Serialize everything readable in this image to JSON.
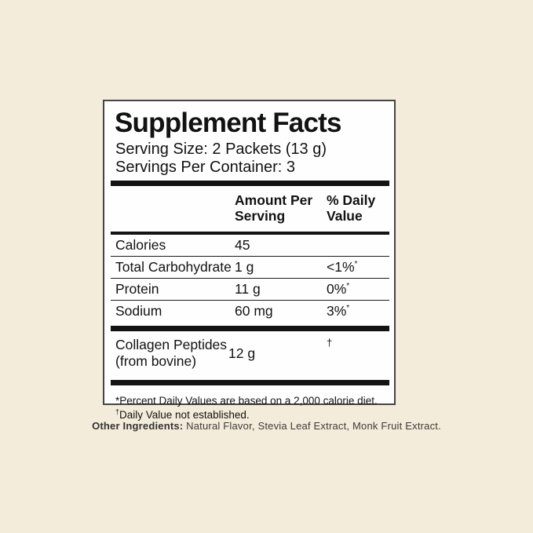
{
  "panel": {
    "title": "Supplement Facts",
    "serving_size": "Serving Size: 2 Packets (13 g)",
    "servings_per_container": "Servings Per Container: 3",
    "columns": {
      "amount": "Amount Per Serving",
      "dv": "% Daily Value"
    },
    "rows": [
      {
        "name": "Calories",
        "amount": "45",
        "dv": "",
        "dv_note": ""
      },
      {
        "name": "Total Carbohydrate",
        "amount": "1 g",
        "dv": "<1%",
        "dv_note": "*"
      },
      {
        "name": "Protein",
        "amount": "11 g",
        "dv": "0%",
        "dv_note": "*"
      },
      {
        "name": "Sodium",
        "amount": "60 mg",
        "dv": "3%",
        "dv_note": "*"
      }
    ],
    "supplement_row": {
      "name_line1": "Collagen Peptides",
      "name_line2": "(from bovine)",
      "amount": "12 g",
      "dv_symbol": "†"
    },
    "footnote_line1": "*Percent Daily Values are based on a 2,000 calorie diet.",
    "footnote_line2_symbol": "†",
    "footnote_line2_text": "Daily Value not established."
  },
  "other_ingredients": {
    "label": "Other Ingredients:",
    "text": " Natural Flavor, Stevia Leaf Extract, Monk Fruit Extract."
  },
  "colors": {
    "page_background": "#f4ecda",
    "panel_background": "#fefefe",
    "panel_border": "#454545",
    "text": "#121212",
    "other_ingredients_text": "#3c3c3c"
  }
}
